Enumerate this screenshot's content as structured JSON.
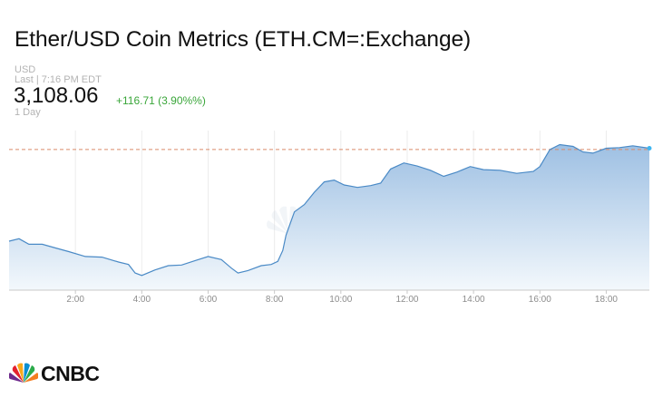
{
  "header": {
    "title": "Ether/USD Coin Metrics (ETH.CM=:Exchange)",
    "currency": "USD",
    "last_time": "Last | 7:16 PM EDT",
    "price": "3,108.06",
    "change": "+116.71 (3.90%%)",
    "timeframe": "1 Day"
  },
  "brand": {
    "name": "CNBC"
  },
  "colors": {
    "line": "#4a8ac6",
    "area_top": "#9ec0e3",
    "area_bottom": "#f3f8fc",
    "reference_line": "#d98a6a",
    "change_positive": "#3aa63a"
  },
  "chart_data": {
    "type": "area",
    "title": "Ether/USD Coin Metrics (ETH.CM=:Exchange)",
    "xlabel": "",
    "ylabel": "",
    "x_unit": "hour of day",
    "x_ticks": [
      "2:00",
      "4:00",
      "6:00",
      "8:00",
      "10:00",
      "12:00",
      "14:00",
      "16:00",
      "18:00"
    ],
    "xlim": [
      0,
      19.3
    ],
    "ylim": [
      2870,
      3125
    ],
    "previous_close": 3100,
    "grid": true,
    "y_axis_labels": false,
    "series": [
      {
        "values": [
          [
            0.0,
            2950
          ],
          [
            0.3,
            2954
          ],
          [
            0.6,
            2945
          ],
          [
            1.0,
            2945
          ],
          [
            1.4,
            2939
          ],
          [
            1.8,
            2933
          ],
          [
            2.3,
            2925
          ],
          [
            2.8,
            2924
          ],
          [
            3.3,
            2916
          ],
          [
            3.6,
            2912
          ],
          [
            3.8,
            2898
          ],
          [
            4.0,
            2894
          ],
          [
            4.4,
            2903
          ],
          [
            4.8,
            2910
          ],
          [
            5.2,
            2911
          ],
          [
            5.6,
            2918
          ],
          [
            6.0,
            2925
          ],
          [
            6.4,
            2920
          ],
          [
            6.7,
            2906
          ],
          [
            6.9,
            2898
          ],
          [
            7.2,
            2902
          ],
          [
            7.6,
            2910
          ],
          [
            7.9,
            2912
          ],
          [
            8.1,
            2917
          ],
          [
            8.25,
            2935
          ],
          [
            8.35,
            2960
          ],
          [
            8.6,
            2998
          ],
          [
            8.9,
            3010
          ],
          [
            9.2,
            3030
          ],
          [
            9.5,
            3047
          ],
          [
            9.8,
            3050
          ],
          [
            10.1,
            3042
          ],
          [
            10.5,
            3038
          ],
          [
            10.9,
            3041
          ],
          [
            11.2,
            3045
          ],
          [
            11.5,
            3068
          ],
          [
            11.9,
            3078
          ],
          [
            12.3,
            3073
          ],
          [
            12.7,
            3066
          ],
          [
            13.1,
            3056
          ],
          [
            13.5,
            3063
          ],
          [
            13.9,
            3072
          ],
          [
            14.3,
            3067
          ],
          [
            14.8,
            3066
          ],
          [
            15.3,
            3061
          ],
          [
            15.8,
            3064
          ],
          [
            16.0,
            3072
          ],
          [
            16.3,
            3100
          ],
          [
            16.6,
            3108
          ],
          [
            17.0,
            3105
          ],
          [
            17.3,
            3096
          ],
          [
            17.6,
            3094
          ],
          [
            18.0,
            3102
          ],
          [
            18.4,
            3103
          ],
          [
            18.8,
            3106
          ],
          [
            19.3,
            3102
          ]
        ]
      }
    ]
  }
}
